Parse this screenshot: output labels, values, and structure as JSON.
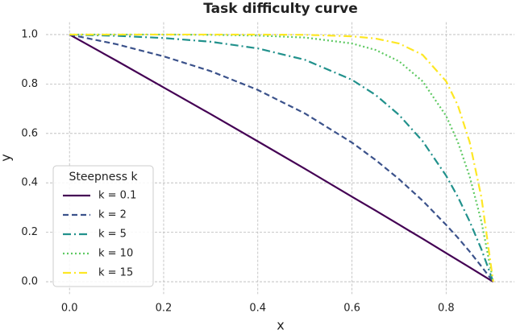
{
  "chart_data": {
    "type": "line",
    "title": "Task difficulty curve",
    "xlabel": "x",
    "ylabel": "y",
    "x": [
      0,
      0.1,
      0.2,
      0.3,
      0.4,
      0.5,
      0.6,
      0.65,
      0.7,
      0.75,
      0.8,
      0.825,
      0.85,
      0.875,
      0.9
    ],
    "series": [
      {
        "name": "k = 0.1",
        "color": "#440154",
        "dash": "solid",
        "values": [
          1.0,
          0.894,
          0.786,
          0.678,
          0.568,
          0.457,
          0.344,
          0.288,
          0.231,
          0.174,
          0.116,
          0.087,
          0.058,
          0.029,
          0
        ]
      },
      {
        "name": "k = 2",
        "color": "#3b528b",
        "dash": "dashed",
        "values": [
          1.0,
          0.961,
          0.912,
          0.852,
          0.776,
          0.681,
          0.563,
          0.493,
          0.415,
          0.328,
          0.23,
          0.178,
          0.122,
          0.062,
          0
        ]
      },
      {
        "name": "k = 5",
        "color": "#21918c",
        "dash": "dashdot",
        "values": [
          1.0,
          0.995,
          0.986,
          0.971,
          0.944,
          0.898,
          0.817,
          0.756,
          0.675,
          0.569,
          0.429,
          0.343,
          0.244,
          0.131,
          0
        ]
      },
      {
        "name": "k = 10",
        "color": "#5ec962",
        "dash": "dotted",
        "values": [
          1.0,
          1.0,
          1.0,
          0.999,
          0.996,
          0.988,
          0.964,
          0.938,
          0.892,
          0.811,
          0.671,
          0.565,
          0.426,
          0.243,
          0
        ]
      },
      {
        "name": "k = 15",
        "color": "#fde725",
        "dash": "dashdot",
        "values": [
          1.0,
          1.0,
          1.0,
          1.0,
          1.0,
          0.999,
          0.993,
          0.984,
          0.964,
          0.918,
          0.811,
          0.713,
          0.565,
          0.341,
          0
        ]
      }
    ],
    "legend_title": "Steepness k",
    "legend": "lower left",
    "xlim": [
      -0.05,
      0.945
    ],
    "ylim": [
      -0.05,
      1.05
    ],
    "xticks": [
      {
        "value": 0,
        "label": "0.0"
      },
      0.2,
      0.4,
      0.6,
      0.8
    ],
    "yticks": [
      {
        "value": 0,
        "label": "0.0"
      },
      0.2,
      0.4,
      0.6,
      0.8,
      {
        "value": 1,
        "label": "1.0"
      }
    ],
    "grid": true
  }
}
